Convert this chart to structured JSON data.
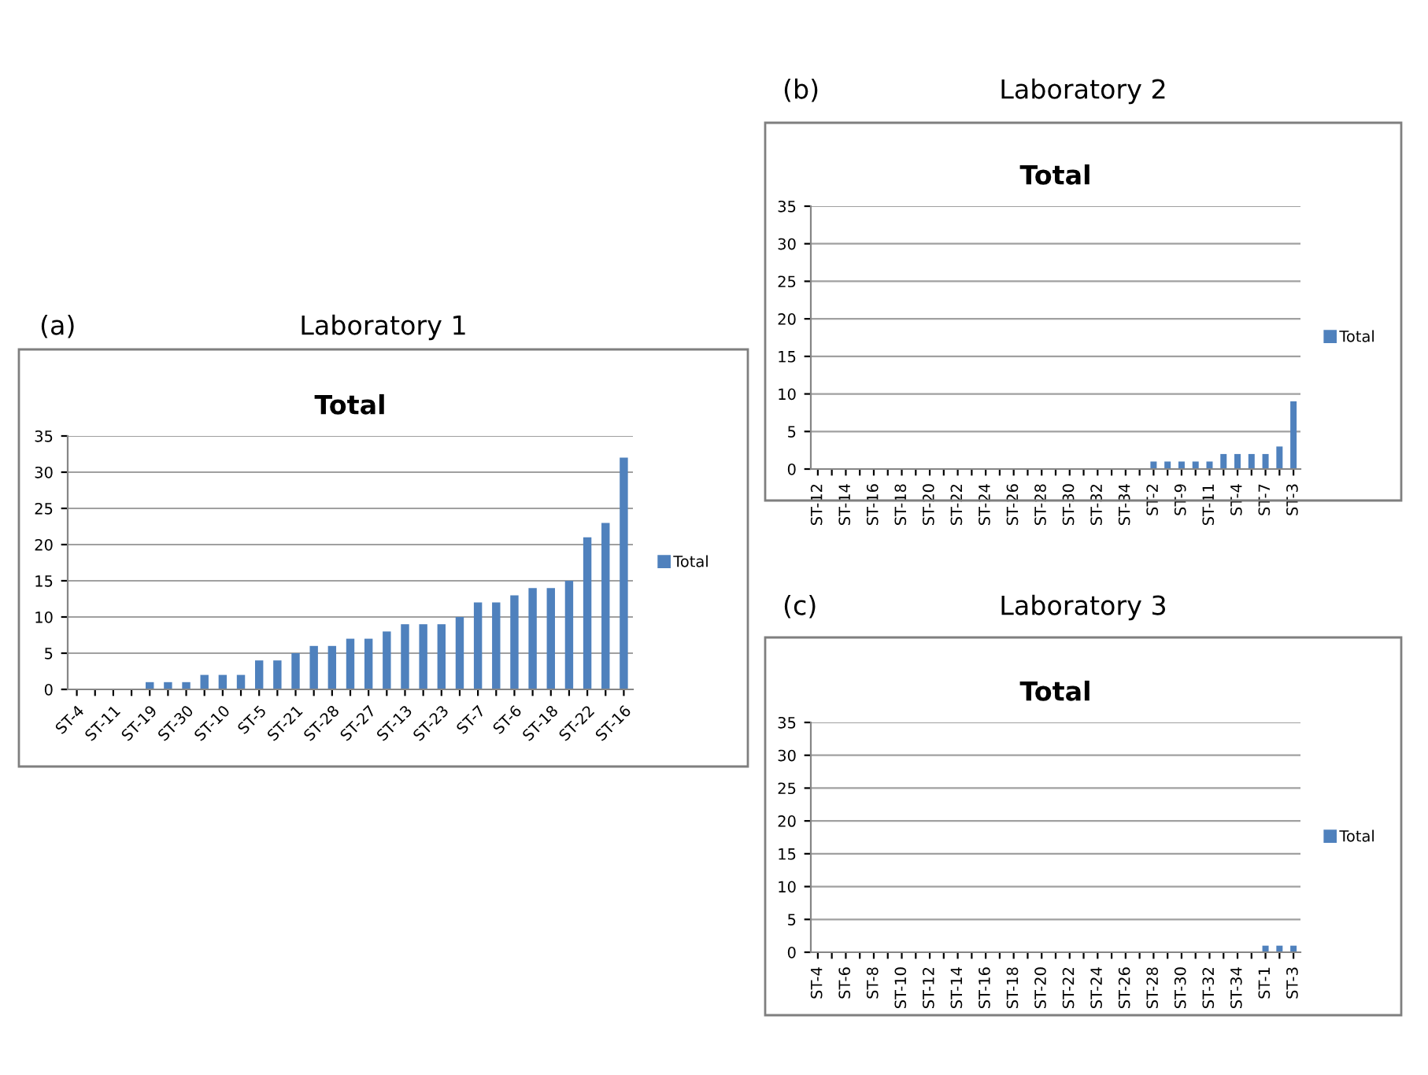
{
  "chart_data": [
    {
      "type": "bar",
      "title": "Laboratory 1",
      "subtitle": "Total",
      "annotations": [
        "(a)"
      ],
      "categories": [
        "ST-4",
        null,
        "ST-11",
        null,
        "ST-19",
        null,
        "ST-30",
        null,
        "ST-10",
        null,
        "ST-5",
        null,
        "ST-21",
        null,
        "ST-28",
        null,
        "ST-27",
        null,
        "ST-13",
        null,
        "ST-23",
        null,
        "ST-7",
        null,
        "ST-6",
        null,
        "ST-18",
        null,
        "ST-22",
        null,
        "ST-16"
      ],
      "series": [
        {
          "name": "Total",
          "color": "#4f81bd",
          "values": [
            0,
            0,
            0,
            0,
            1,
            1,
            1,
            2,
            2,
            2,
            4,
            4,
            5,
            6,
            6,
            7,
            7,
            8,
            9,
            9,
            9,
            10,
            12,
            12,
            13,
            14,
            14,
            15,
            21,
            23,
            32
          ]
        }
      ],
      "ylim": [
        0,
        35
      ],
      "yticks": [
        0,
        5,
        10,
        15,
        20,
        25,
        30,
        35
      ],
      "grid": "y",
      "legend": "right"
    },
    {
      "type": "bar",
      "title": "Laboratory 2",
      "subtitle": "Total",
      "annotations": [
        "(b)"
      ],
      "categories": [
        "ST-12",
        null,
        "ST-14",
        null,
        "ST-16",
        null,
        "ST-18",
        null,
        "ST-20",
        null,
        "ST-22",
        null,
        "ST-24",
        null,
        "ST-26",
        null,
        "ST-28",
        null,
        "ST-30",
        null,
        "ST-32",
        null,
        "ST-34",
        null,
        "ST-2",
        null,
        "ST-9",
        null,
        "ST-11",
        null,
        "ST-4",
        null,
        "ST-7",
        null,
        "ST-3"
      ],
      "series": [
        {
          "name": "Total",
          "color": "#4f81bd",
          "values": [
            0,
            0,
            0,
            0,
            0,
            0,
            0,
            0,
            0,
            0,
            0,
            0,
            0,
            0,
            0,
            0,
            0,
            0,
            0,
            0,
            0,
            0,
            0,
            0,
            1,
            1,
            1,
            1,
            1,
            2,
            2,
            2,
            2,
            3,
            9
          ]
        }
      ],
      "ylim": [
        0,
        35
      ],
      "yticks": [
        0,
        5,
        10,
        15,
        20,
        25,
        30,
        35
      ],
      "grid": "y",
      "legend": "right"
    },
    {
      "type": "bar",
      "title": "Laboratory 3",
      "subtitle": "Total",
      "annotations": [
        "(c)"
      ],
      "categories": [
        "ST-4",
        null,
        "ST-6",
        null,
        "ST-8",
        null,
        "ST-10",
        null,
        "ST-12",
        null,
        "ST-14",
        null,
        "ST-16",
        null,
        "ST-18",
        null,
        "ST-20",
        null,
        "ST-22",
        null,
        "ST-24",
        null,
        "ST-26",
        null,
        "ST-28",
        null,
        "ST-30",
        null,
        "ST-32",
        null,
        "ST-34",
        null,
        "ST-1",
        null,
        "ST-3"
      ],
      "series": [
        {
          "name": "Total",
          "color": "#4f81bd",
          "values": [
            0,
            0,
            0,
            0,
            0,
            0,
            0,
            0,
            0,
            0,
            0,
            0,
            0,
            0,
            0,
            0,
            0,
            0,
            0,
            0,
            0,
            0,
            0,
            0,
            0,
            0,
            0,
            0,
            0,
            0,
            0,
            0,
            1,
            1,
            1
          ]
        }
      ],
      "ylim": [
        0,
        35
      ],
      "yticks": [
        0,
        5,
        10,
        15,
        20,
        25,
        30,
        35
      ],
      "grid": "y",
      "legend": "right"
    }
  ]
}
